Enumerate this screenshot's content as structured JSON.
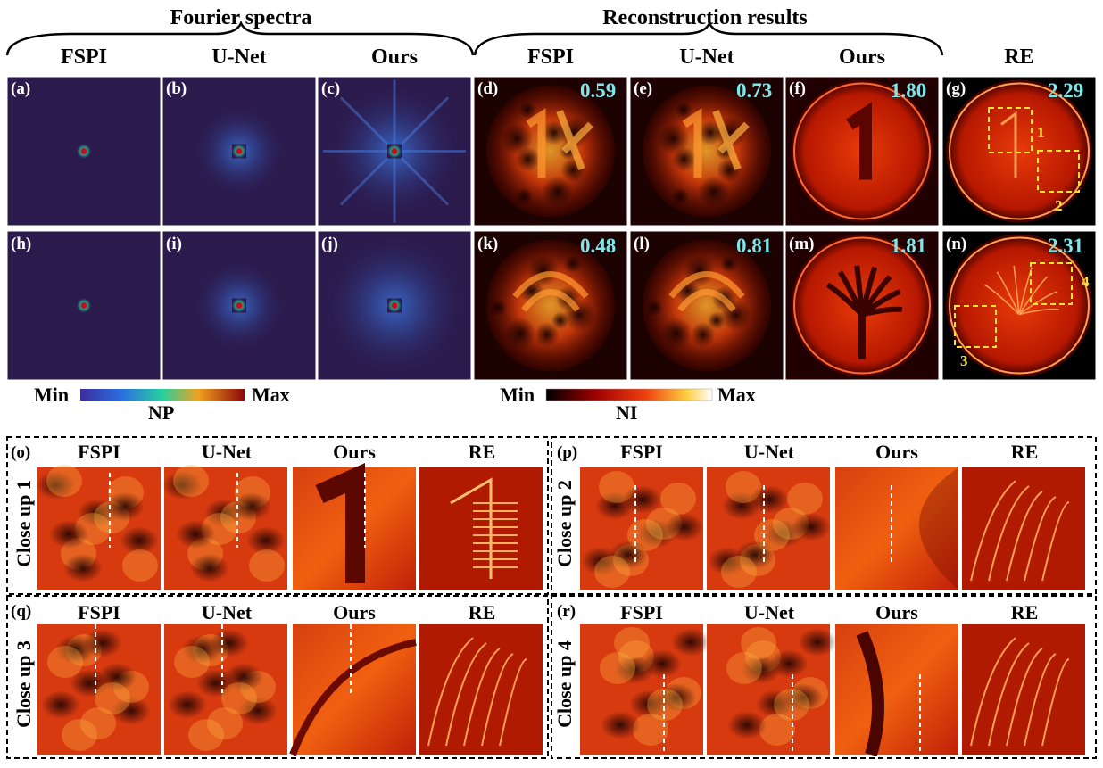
{
  "sections": {
    "fourier": "Fourier spectra",
    "reconstruction": "Reconstruction results"
  },
  "columns": [
    "FSPI",
    "U-Net",
    "Ours",
    "FSPI",
    "U-Net",
    "Ours",
    "RE"
  ],
  "row1_labels": [
    "(a)",
    "(b)",
    "(c)",
    "(d)",
    "(e)",
    "(f)",
    "(g)"
  ],
  "row2_labels": [
    "(h)",
    "(i)",
    "(j)",
    "(k)",
    "(l)",
    "(m)",
    "(n)"
  ],
  "row1_scores": [
    "0.59",
    "0.73",
    "1.80",
    "2.29"
  ],
  "row2_scores": [
    "0.48",
    "0.81",
    "1.81",
    "2.31"
  ],
  "box_numbers": [
    "1",
    "2",
    "3",
    "4"
  ],
  "colorbar_np": {
    "min": "Min",
    "max": "Max",
    "label": "NP"
  },
  "colorbar_ni": {
    "min": "Min",
    "max": "Max",
    "label": "NI"
  },
  "closeups": [
    {
      "label": "(o)",
      "side": "Close up 1",
      "cols": [
        "FSPI",
        "U-Net",
        "Ours",
        "RE"
      ]
    },
    {
      "label": "(p)",
      "side": "Close up 2",
      "cols": [
        "FSPI",
        "U-Net",
        "Ours",
        "RE"
      ]
    },
    {
      "label": "(q)",
      "side": "Close up 3",
      "cols": [
        "FSPI",
        "U-Net",
        "Ours",
        "RE"
      ]
    },
    {
      "label": "(r)",
      "side": "Close up 4",
      "cols": [
        "FSPI",
        "U-Net",
        "Ours",
        "RE"
      ]
    }
  ],
  "colors": {
    "spectrum_bg": "#2b1a4c",
    "score": "#7fe7ea",
    "box": "#f4e62a",
    "heat_dark": "#1a0000",
    "heat_mid": "#e03010",
    "heat_bright": "#ffd060"
  }
}
